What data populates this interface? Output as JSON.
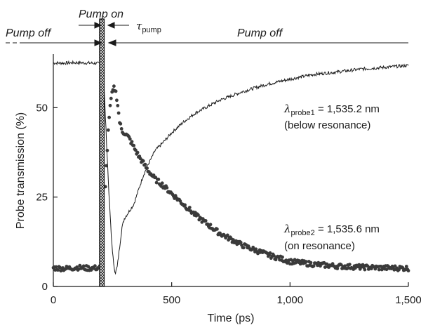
{
  "chart_data": {
    "type": "scatter",
    "xlabel": "Time (ps)",
    "ylabel": "Probe transmission (%)",
    "xlim": [
      0,
      1500
    ],
    "ylim": [
      0,
      65
    ],
    "x_ticks": [
      0,
      500,
      1000,
      1500
    ],
    "x_tick_labels": [
      "0",
      "500",
      "1,000",
      "1,500"
    ],
    "y_ticks": [
      0,
      25,
      50
    ],
    "y_tick_labels": [
      "0",
      "25",
      "50"
    ],
    "grid": false,
    "pump_window": [
      195,
      215
    ],
    "annotations": {
      "pump_on": "Pump on",
      "pump_off_left": "Pump off",
      "pump_off_right": "Pump off",
      "tau_symbol": "τ",
      "tau_sub": "pump",
      "probe1_lambda": "λ",
      "probe1_sub": "probe1",
      "probe1_value": " = 1,535.2 nm",
      "probe1_note": "(below resonance)",
      "probe2_lambda": "λ",
      "probe2_sub": "probe2",
      "probe2_value": " = 1,535.6 nm",
      "probe2_note": "(on resonance)"
    },
    "series": [
      {
        "style": "line",
        "color": "#1a1a1a",
        "x": [
          0,
          50,
          100,
          150,
          190,
          205,
          215,
          225,
          235,
          245,
          255,
          262,
          270,
          280,
          290,
          300,
          320,
          340,
          360,
          380,
          400,
          430,
          460,
          500,
          550,
          600,
          700,
          800,
          900,
          1000,
          1100,
          1200,
          1300,
          1400,
          1500
        ],
        "y": [
          62.5,
          62.5,
          62.6,
          62.5,
          62.4,
          62.0,
          55.0,
          40.0,
          26.0,
          14.0,
          6.0,
          3.8,
          5.5,
          11.0,
          16.5,
          19.0,
          21.0,
          23.0,
          27.0,
          31.0,
          34.0,
          38.0,
          40.0,
          43.0,
          46.0,
          48.5,
          52.0,
          54.5,
          56.5,
          58.0,
          59.3,
          60.0,
          60.8,
          61.3,
          61.8
        ]
      },
      {
        "style": "points",
        "color": "#3a3a3a",
        "x": [
          0,
          50,
          100,
          150,
          190,
          205,
          215,
          225,
          235,
          245,
          255,
          262,
          270,
          280,
          290,
          300,
          320,
          340,
          360,
          380,
          400,
          430,
          460,
          500,
          550,
          600,
          700,
          800,
          900,
          1000,
          1100,
          1200,
          1300,
          1400,
          1500
        ],
        "y": [
          5.2,
          5.0,
          5.3,
          5.1,
          5.2,
          5.5,
          20.0,
          35.0,
          47.0,
          53.0,
          55.5,
          55.0,
          52.0,
          46.0,
          43.5,
          43.0,
          41.5,
          39.0,
          36.5,
          34.5,
          32.5,
          30.0,
          28.5,
          26.0,
          23.0,
          20.0,
          15.0,
          11.5,
          9.0,
          7.0,
          6.2,
          5.7,
          5.4,
          5.2,
          5.1
        ]
      }
    ]
  }
}
